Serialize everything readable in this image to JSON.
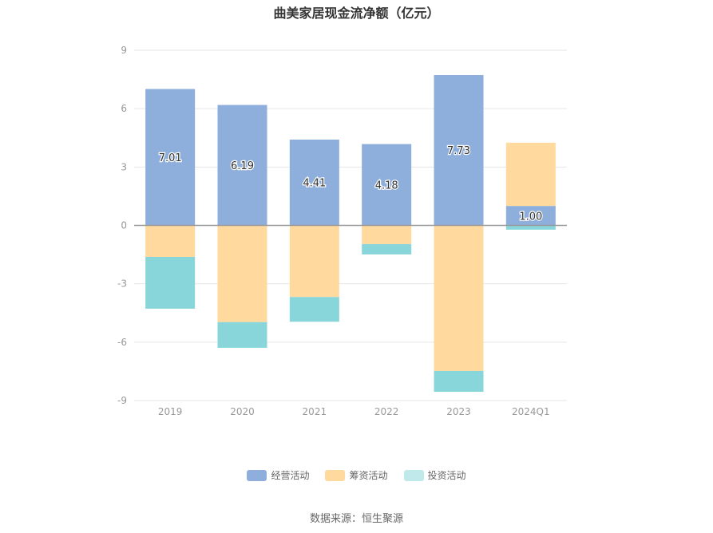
{
  "title": "曲美家居现金流净额（亿元）",
  "source": "数据来源：恒生聚源",
  "chart_data": {
    "type": "bar",
    "stacked": true,
    "categories": [
      "2019",
      "2020",
      "2021",
      "2022",
      "2023",
      "2024Q1"
    ],
    "series": [
      {
        "name": "经营活动",
        "color": "#8eaedb",
        "values": [
          7.01,
          6.19,
          4.41,
          4.18,
          7.73,
          1.0
        ]
      },
      {
        "name": "筹资活动",
        "color": "#ffd99e",
        "values": [
          -1.62,
          -4.97,
          -3.68,
          -0.96,
          -7.48,
          3.25
        ]
      },
      {
        "name": "投资活动",
        "color": "#88d6da",
        "values": [
          -2.66,
          -1.32,
          -1.27,
          -0.53,
          -1.07,
          -0.22
        ]
      }
    ],
    "data_labels": [
      "7.01",
      "6.19",
      "4.41",
      "4.18",
      "7.73",
      "1.00"
    ],
    "yticks": [
      "9",
      "6",
      "3",
      "0",
      "-3",
      "-6",
      "-9"
    ],
    "ylim": [
      -9,
      9
    ],
    "grid": true,
    "legend_position": "bottom"
  },
  "legend": [
    {
      "name": "经营活动",
      "color": "#8eaedb"
    },
    {
      "name": "筹资活动",
      "color": "#ffd99e"
    },
    {
      "name": "投资活动",
      "color": "#c0e9ec"
    }
  ]
}
